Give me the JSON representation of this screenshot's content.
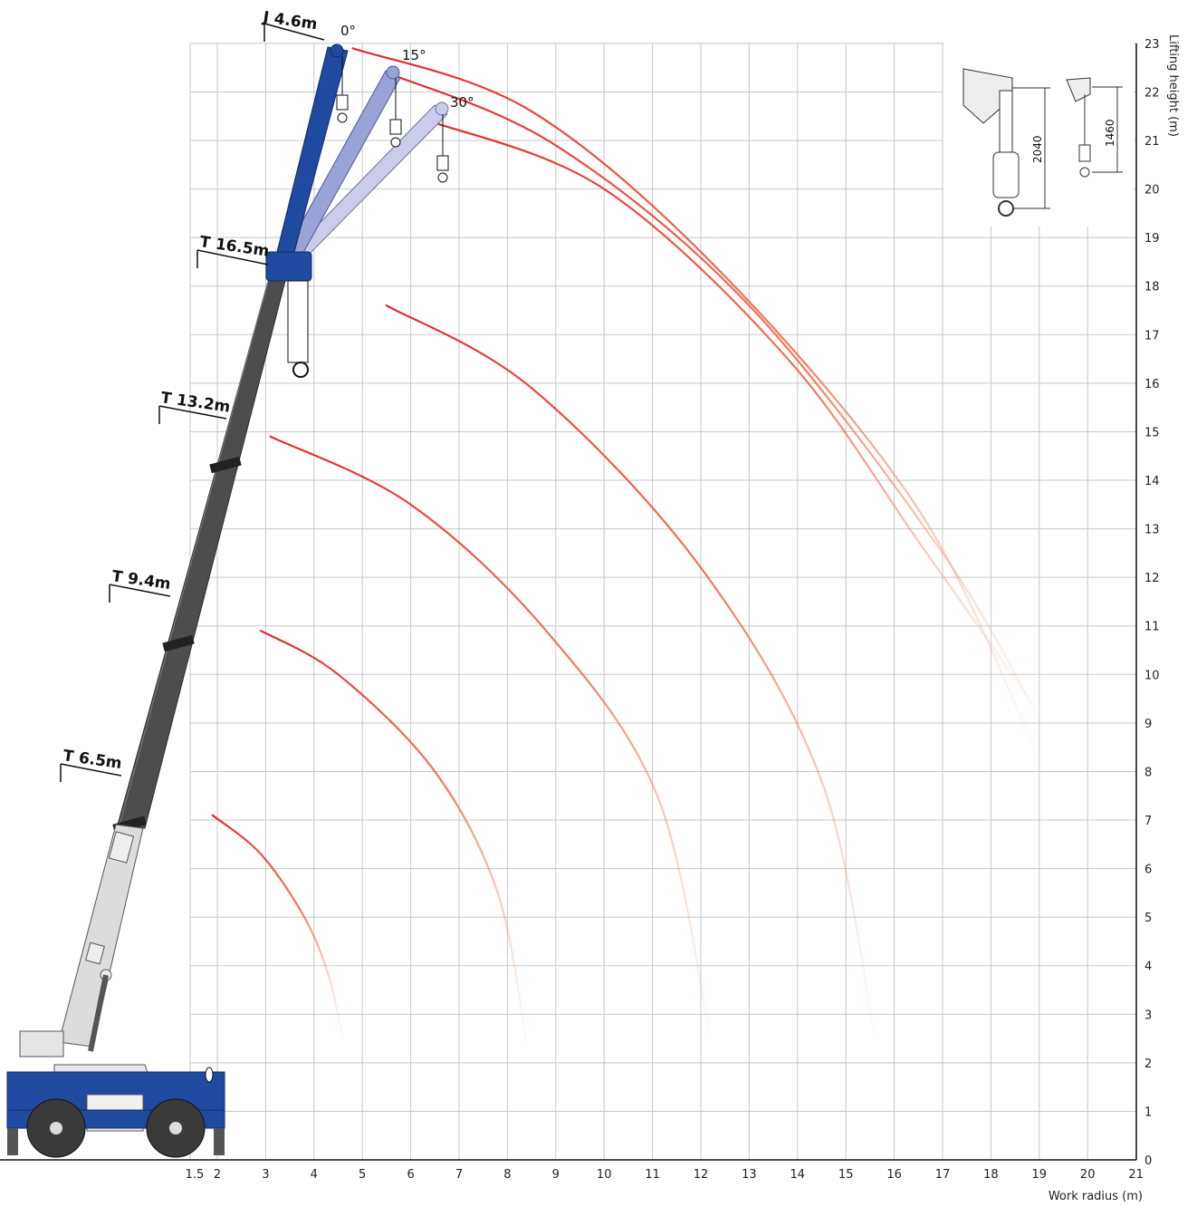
{
  "chart_data": {
    "type": "line",
    "xlabel": "Work radius (m)",
    "ylabel": "Lifting height (m)",
    "xlim": [
      1.5,
      21
    ],
    "ylim": [
      0,
      23
    ],
    "x_ticks": [
      "1.5",
      "2",
      "3",
      "4",
      "5",
      "6",
      "7",
      "8",
      "9",
      "10",
      "11",
      "12",
      "13",
      "14",
      "15",
      "16",
      "17",
      "18",
      "19",
      "20",
      "21"
    ],
    "y_ticks": [
      "0",
      "1",
      "2",
      "3",
      "4",
      "5",
      "6",
      "7",
      "8",
      "9",
      "10",
      "11",
      "12",
      "13",
      "14",
      "15",
      "16",
      "17",
      "18",
      "19",
      "20",
      "21",
      "22",
      "23"
    ],
    "grid": true,
    "series": [
      {
        "x": [
          1.9,
          2.9,
          3.8,
          4.3,
          4.6
        ],
        "y": [
          7.1,
          6.3,
          5.0,
          3.8,
          2.5
        ]
      },
      {
        "x": [
          2.9,
          4.5,
          6.5,
          7.8,
          8.4
        ],
        "y": [
          10.9,
          10.0,
          8.0,
          5.5,
          2.4
        ]
      },
      {
        "x": [
          3.1,
          6.0,
          8.8,
          11.1,
          12.2
        ],
        "y": [
          14.9,
          13.5,
          10.9,
          7.5,
          2.5
        ]
      },
      {
        "x": [
          5.5,
          8.5,
          12.0,
          14.5,
          15.6
        ],
        "y": [
          17.6,
          15.9,
          12.2,
          7.8,
          2.5
        ]
      },
      {
        "x": [
          4.8,
          8.5,
          12.5,
          16.5,
          18.9
        ],
        "y": [
          22.9,
          21.6,
          18.2,
          13.4,
          8.5
        ]
      },
      {
        "x": [
          5.5,
          9.0,
          13.0,
          17.0,
          19.1
        ],
        "y": [
          22.4,
          20.9,
          17.6,
          12.5,
          8.9
        ]
      },
      {
        "x": [
          6.4,
          10.0,
          13.8,
          16.6,
          19.0
        ],
        "y": [
          21.4,
          20.0,
          16.5,
          12.6,
          9.2
        ]
      }
    ]
  },
  "boom_labels": {
    "t65": "T 6.5m",
    "t94": "T 9.4m",
    "t132": "T 13.2m",
    "t165": "T 16.5m",
    "j46": "J 4.6m"
  },
  "angle_labels": {
    "a0": "0°",
    "a15": "15°",
    "a30": "30°"
  },
  "dimensions": {
    "d2040": "2040",
    "d1460": "1460"
  },
  "colors": {
    "arc_red": "#e3242b",
    "crane_blue": "#1f4aa0",
    "boom_grey": "#4d4d4d",
    "jib_light": "#9aa3d6",
    "grid": "#c8c8c8"
  }
}
